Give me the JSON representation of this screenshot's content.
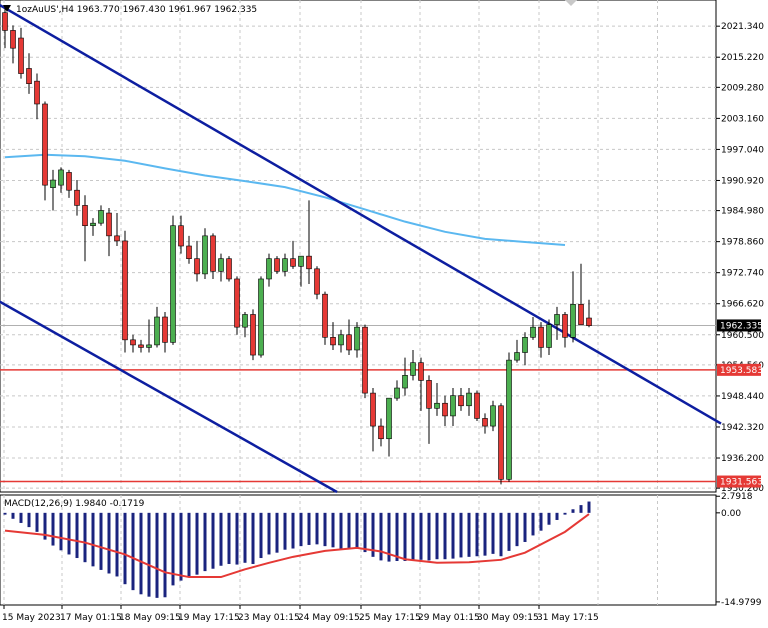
{
  "header": {
    "symbol_info": "1ozAuUS',H4  1963.770 1967.430 1961.967 1962.335",
    "macd_info": "MACD(12,26,9) 1.9840 -0.1719"
  },
  "price_axis_labels": [
    "2021.340",
    "2015.220",
    "2009.280",
    "2003.160",
    "1997.040",
    "1990.920",
    "1984.980",
    "1978.860",
    "1972.740",
    "1966.620",
    "1960.500",
    "1954.560",
    "1948.440",
    "1942.320",
    "1936.200",
    "1930.260"
  ],
  "current_price_tag": "1962.335",
  "line_tags": [
    "1953.583",
    "1931.563"
  ],
  "macd_axis_labels": [
    "2.7918",
    "0.00",
    "-14.9799"
  ],
  "time_axis_labels": [
    "15 May 2023",
    "17 May 01:15",
    "18 May 09:15",
    "19 May 17:15",
    "23 May 01:15",
    "24 May 09:15",
    "25 May 17:15",
    "29 May 01:15",
    "30 May 09:15",
    "31 May 17:15"
  ],
  "colors": {
    "bull": "#4caf50",
    "bear": "#e53935",
    "wick": "#000000",
    "trendline": "#0d1ea0",
    "ma": "#5bb8f0",
    "hline": "#e53935",
    "macd_hist": "#1a237e",
    "macd_signal": "#e53935",
    "grid": "#c8c8c8"
  },
  "chart_data": {
    "type": "candlestick",
    "symbol": "1ozAuUS'",
    "timeframe": "H4",
    "ylim": [
      1929.5,
      2026.5
    ],
    "candles": [
      {
        "o": 2024.0,
        "h": 2025.5,
        "l": 2017.0,
        "c": 2020.5
      },
      {
        "o": 2020.5,
        "h": 2021.5,
        "l": 2014.0,
        "c": 2017.0
      },
      {
        "o": 2019.0,
        "h": 2021.0,
        "l": 2011.0,
        "c": 2012.0
      },
      {
        "o": 2013.0,
        "h": 2016.0,
        "l": 2008.0,
        "c": 2010.0
      },
      {
        "o": 2010.5,
        "h": 2012.0,
        "l": 2003.0,
        "c": 2006.0
      },
      {
        "o": 2006.0,
        "h": 2006.5,
        "l": 1987.0,
        "c": 1990.0
      },
      {
        "o": 1989.5,
        "h": 1993.0,
        "l": 1985.0,
        "c": 1991.0
      },
      {
        "o": 1990.0,
        "h": 1993.5,
        "l": 1988.5,
        "c": 1993.0
      },
      {
        "o": 1992.5,
        "h": 1993.0,
        "l": 1987.5,
        "c": 1989.0
      },
      {
        "o": 1989.0,
        "h": 1991.0,
        "l": 1984.0,
        "c": 1986.0
      },
      {
        "o": 1986.0,
        "h": 1988.0,
        "l": 1975.0,
        "c": 1982.0
      },
      {
        "o": 1982.0,
        "h": 1983.5,
        "l": 1980.0,
        "c": 1982.5
      },
      {
        "o": 1982.5,
        "h": 1986.0,
        "l": 1982.0,
        "c": 1985.0
      },
      {
        "o": 1984.5,
        "h": 1985.5,
        "l": 1976.0,
        "c": 1980.0
      },
      {
        "o": 1980.0,
        "h": 1984.5,
        "l": 1978.0,
        "c": 1979.0
      },
      {
        "o": 1979.0,
        "h": 1981.0,
        "l": 1957.0,
        "c": 1959.5
      },
      {
        "o": 1959.5,
        "h": 1960.5,
        "l": 1957.0,
        "c": 1958.5
      },
      {
        "o": 1958.5,
        "h": 1959.5,
        "l": 1957.0,
        "c": 1958.0
      },
      {
        "o": 1958.0,
        "h": 1963.5,
        "l": 1957.0,
        "c": 1958.5
      },
      {
        "o": 1958.5,
        "h": 1966.0,
        "l": 1958.0,
        "c": 1964.0
      },
      {
        "o": 1964.0,
        "h": 1965.0,
        "l": 1957.0,
        "c": 1959.0
      },
      {
        "o": 1959.0,
        "h": 1984.0,
        "l": 1958.5,
        "c": 1982.0
      },
      {
        "o": 1982.0,
        "h": 1984.0,
        "l": 1976.5,
        "c": 1978.0
      },
      {
        "o": 1978.0,
        "h": 1980.0,
        "l": 1974.5,
        "c": 1975.5
      },
      {
        "o": 1975.5,
        "h": 1979.0,
        "l": 1971.0,
        "c": 1972.5
      },
      {
        "o": 1972.5,
        "h": 1981.5,
        "l": 1971.5,
        "c": 1980.0
      },
      {
        "o": 1980.0,
        "h": 1980.5,
        "l": 1971.5,
        "c": 1973.0
      },
      {
        "o": 1973.0,
        "h": 1976.5,
        "l": 1971.0,
        "c": 1975.5
      },
      {
        "o": 1975.5,
        "h": 1976.0,
        "l": 1971.0,
        "c": 1971.5
      },
      {
        "o": 1971.5,
        "h": 1972.0,
        "l": 1960.5,
        "c": 1962.0
      },
      {
        "o": 1962.0,
        "h": 1965.0,
        "l": 1960.0,
        "c": 1964.5
      },
      {
        "o": 1964.5,
        "h": 1965.5,
        "l": 1955.5,
        "c": 1956.5
      },
      {
        "o": 1956.5,
        "h": 1972.0,
        "l": 1956.0,
        "c": 1971.5
      },
      {
        "o": 1971.5,
        "h": 1976.5,
        "l": 1970.0,
        "c": 1975.5
      },
      {
        "o": 1975.5,
        "h": 1976.0,
        "l": 1972.5,
        "c": 1973.0
      },
      {
        "o": 1973.0,
        "h": 1976.5,
        "l": 1972.0,
        "c": 1975.5
      },
      {
        "o": 1975.5,
        "h": 1979.0,
        "l": 1973.5,
        "c": 1974.0
      },
      {
        "o": 1974.0,
        "h": 1976.0,
        "l": 1970.0,
        "c": 1976.0
      },
      {
        "o": 1976.0,
        "h": 1987.0,
        "l": 1970.5,
        "c": 1973.5
      },
      {
        "o": 1973.5,
        "h": 1974.0,
        "l": 1967.5,
        "c": 1968.5
      },
      {
        "o": 1968.5,
        "h": 1969.0,
        "l": 1958.5,
        "c": 1960.0
      },
      {
        "o": 1960.0,
        "h": 1963.0,
        "l": 1957.5,
        "c": 1958.5
      },
      {
        "o": 1958.5,
        "h": 1961.5,
        "l": 1957.0,
        "c": 1960.5
      },
      {
        "o": 1960.5,
        "h": 1963.5,
        "l": 1956.5,
        "c": 1957.5
      },
      {
        "o": 1957.5,
        "h": 1963.0,
        "l": 1956.0,
        "c": 1962.0
      },
      {
        "o": 1962.0,
        "h": 1962.5,
        "l": 1948.0,
        "c": 1949.0
      },
      {
        "o": 1949.0,
        "h": 1950.0,
        "l": 1937.5,
        "c": 1942.5
      },
      {
        "o": 1942.5,
        "h": 1944.0,
        "l": 1938.5,
        "c": 1940.0
      },
      {
        "o": 1940.0,
        "h": 1948.0,
        "l": 1936.5,
        "c": 1948.0
      },
      {
        "o": 1948.0,
        "h": 1951.5,
        "l": 1947.5,
        "c": 1950.0
      },
      {
        "o": 1950.0,
        "h": 1956.0,
        "l": 1948.5,
        "c": 1952.5
      },
      {
        "o": 1952.5,
        "h": 1957.5,
        "l": 1951.5,
        "c": 1955.0
      },
      {
        "o": 1955.0,
        "h": 1956.0,
        "l": 1945.5,
        "c": 1951.5
      },
      {
        "o": 1951.5,
        "h": 1952.5,
        "l": 1939.0,
        "c": 1946.0
      },
      {
        "o": 1946.0,
        "h": 1951.0,
        "l": 1944.5,
        "c": 1947.0
      },
      {
        "o": 1947.0,
        "h": 1948.5,
        "l": 1942.5,
        "c": 1944.5
      },
      {
        "o": 1944.5,
        "h": 1950.0,
        "l": 1942.5,
        "c": 1948.5
      },
      {
        "o": 1948.5,
        "h": 1950.0,
        "l": 1945.5,
        "c": 1946.5
      },
      {
        "o": 1946.5,
        "h": 1950.0,
        "l": 1944.5,
        "c": 1949.0
      },
      {
        "o": 1949.0,
        "h": 1949.5,
        "l": 1943.5,
        "c": 1944.0
      },
      {
        "o": 1944.0,
        "h": 1945.0,
        "l": 1941.0,
        "c": 1942.5
      },
      {
        "o": 1942.5,
        "h": 1947.5,
        "l": 1941.5,
        "c": 1946.5
      },
      {
        "o": 1946.5,
        "h": 1947.0,
        "l": 1931.0,
        "c": 1932.0
      },
      {
        "o": 1932.0,
        "h": 1957.0,
        "l": 1931.5,
        "c": 1955.5
      },
      {
        "o": 1955.5,
        "h": 1959.5,
        "l": 1955.0,
        "c": 1957.0
      },
      {
        "o": 1957.0,
        "h": 1961.0,
        "l": 1954.5,
        "c": 1960.0
      },
      {
        "o": 1960.0,
        "h": 1964.0,
        "l": 1959.5,
        "c": 1962.0
      },
      {
        "o": 1962.0,
        "h": 1963.0,
        "l": 1956.0,
        "c": 1958.0
      },
      {
        "o": 1958.0,
        "h": 1963.5,
        "l": 1956.5,
        "c": 1962.5
      },
      {
        "o": 1962.5,
        "h": 1966.0,
        "l": 1959.5,
        "c": 1964.5
      },
      {
        "o": 1964.5,
        "h": 1965.0,
        "l": 1958.0,
        "c": 1960.0
      },
      {
        "o": 1960.0,
        "h": 1973.0,
        "l": 1959.0,
        "c": 1966.5
      },
      {
        "o": 1966.5,
        "h": 1974.5,
        "l": 1963.0,
        "c": 1962.5
      },
      {
        "o": 1963.8,
        "h": 1967.4,
        "l": 1961.97,
        "c": 1962.3
      }
    ],
    "moving_average": [
      {
        "i": 0,
        "v": 1995.5
      },
      {
        "i": 5,
        "v": 1996.0
      },
      {
        "i": 10,
        "v": 1995.7
      },
      {
        "i": 15,
        "v": 1994.8
      },
      {
        "i": 20,
        "v": 1993.3
      },
      {
        "i": 25,
        "v": 1991.9
      },
      {
        "i": 30,
        "v": 1990.8
      },
      {
        "i": 35,
        "v": 1989.6
      },
      {
        "i": 40,
        "v": 1987.6
      },
      {
        "i": 45,
        "v": 1985.2
      },
      {
        "i": 50,
        "v": 1982.8
      },
      {
        "i": 55,
        "v": 1980.8
      },
      {
        "i": 60,
        "v": 1979.4
      },
      {
        "i": 65,
        "v": 1978.8
      },
      {
        "i": 70,
        "v": 1978.2
      }
    ],
    "trendlines": [
      {
        "from": {
          "i": -1.2,
          "v": 2026.0
        },
        "to": {
          "i": 89.5,
          "v": 1943.0
        }
      },
      {
        "from": {
          "i": -1.2,
          "v": 1967.5
        },
        "to": {
          "i": 41.5,
          "v": 1929.5
        }
      }
    ],
    "hlines": [
      1953.583,
      1931.563
    ],
    "macd": {
      "ylim": [
        -15.5,
        3.0
      ],
      "histogram": [
        -0.3,
        -1.0,
        -1.7,
        -2.4,
        -3.2,
        -4.5,
        -5.5,
        -6.3,
        -7.0,
        -7.6,
        -8.3,
        -9.0,
        -9.6,
        -10.2,
        -10.7,
        -12.0,
        -13.0,
        -13.7,
        -14.1,
        -14.3,
        -14.2,
        -12.2,
        -11.4,
        -10.8,
        -10.4,
        -9.8,
        -9.4,
        -8.9,
        -8.6,
        -8.7,
        -8.4,
        -8.6,
        -7.6,
        -7.0,
        -6.7,
        -6.2,
        -6.0,
        -5.6,
        -5.4,
        -5.3,
        -5.6,
        -5.8,
        -6.0,
        -6.1,
        -6.0,
        -6.6,
        -7.4,
        -8.0,
        -8.2,
        -8.1,
        -8.1,
        -7.9,
        -7.9,
        -8.0,
        -7.8,
        -7.8,
        -7.7,
        -7.5,
        -7.4,
        -7.3,
        -7.2,
        -6.9,
        -7.3,
        -6.4,
        -5.6,
        -4.9,
        -3.8,
        -3.0,
        -2.0,
        -1.2,
        -0.3,
        0.6,
        1.3,
        1.9
      ],
      "signal": [
        {
          "i": 0,
          "v": -3.0
        },
        {
          "i": 5,
          "v": -3.7
        },
        {
          "i": 10,
          "v": -5.0
        },
        {
          "i": 15,
          "v": -7.0
        },
        {
          "i": 20,
          "v": -10.0
        },
        {
          "i": 23,
          "v": -10.8
        },
        {
          "i": 27,
          "v": -10.8
        },
        {
          "i": 30,
          "v": -9.5
        },
        {
          "i": 33,
          "v": -8.4
        },
        {
          "i": 36,
          "v": -7.4
        },
        {
          "i": 40,
          "v": -6.4
        },
        {
          "i": 44,
          "v": -5.9
        },
        {
          "i": 47,
          "v": -6.5
        },
        {
          "i": 50,
          "v": -7.8
        },
        {
          "i": 54,
          "v": -8.4
        },
        {
          "i": 58,
          "v": -8.3
        },
        {
          "i": 62,
          "v": -7.9
        },
        {
          "i": 65,
          "v": -6.7
        },
        {
          "i": 70,
          "v": -3.2
        },
        {
          "i": 73,
          "v": -0.2
        }
      ]
    }
  }
}
